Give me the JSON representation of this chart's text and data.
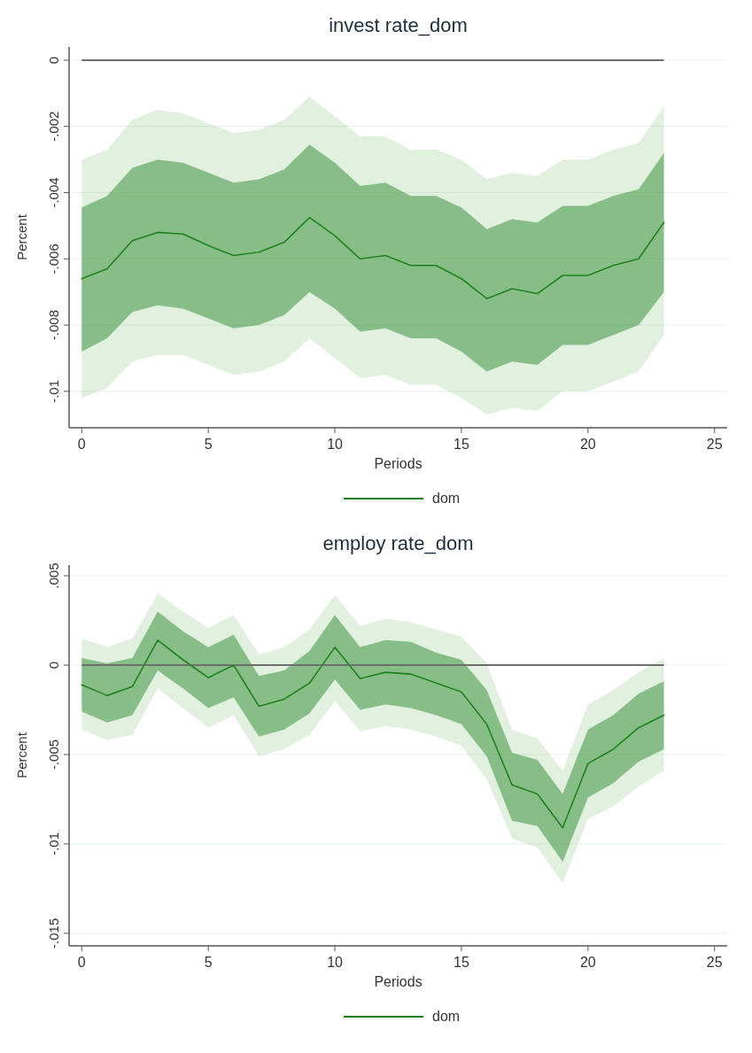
{
  "chart_data": [
    {
      "type": "line",
      "title": "invest rate_dom",
      "xlabel": "Periods",
      "ylabel": "Percent",
      "x": [
        0,
        1,
        2,
        3,
        4,
        5,
        6,
        7,
        8,
        9,
        10,
        11,
        12,
        13,
        14,
        15,
        16,
        17,
        18,
        19,
        20,
        21,
        22,
        23
      ],
      "xlim": [
        -0.5,
        25.5
      ],
      "xticks": [
        0,
        5,
        10,
        15,
        20,
        25
      ],
      "ylim": [
        -0.0111,
        0.0004
      ],
      "yticks": [
        0,
        {
          "value": -0.002,
          "label": "-.002"
        },
        {
          "value": -0.004,
          "label": "-.004"
        },
        {
          "value": -0.006,
          "label": "-.006"
        },
        {
          "value": -0.008,
          "label": "-.008"
        },
        {
          "value": -0.01,
          "label": "-.01"
        }
      ],
      "grid": "y",
      "legend": "bottom",
      "ref_lines": [
        {
          "axis": "y",
          "value": 0,
          "color": "#6e6e6e"
        }
      ],
      "series": [
        {
          "name": "dom",
          "color": "#1a7f1a",
          "values": [
            -0.0066,
            -0.0063,
            -0.00545,
            -0.0052,
            -0.00525,
            -0.0056,
            -0.0059,
            -0.0058,
            -0.0055,
            -0.00475,
            -0.0053,
            -0.006,
            -0.0059,
            -0.0062,
            -0.0062,
            -0.0066,
            -0.0072,
            -0.0069,
            -0.00705,
            -0.0065,
            -0.0065,
            -0.0062,
            -0.006,
            -0.0049
          ],
          "lower": [
            -0.0088,
            -0.0084,
            -0.0076,
            -0.0074,
            -0.0075,
            -0.0078,
            -0.0081,
            -0.008,
            -0.0077,
            -0.007,
            -0.0075,
            -0.0082,
            -0.0081,
            -0.0084,
            -0.0084,
            -0.0088,
            -0.0094,
            -0.0091,
            -0.0092,
            -0.0086,
            -0.0086,
            -0.0083,
            -0.008,
            -0.007
          ],
          "upper": [
            -0.00445,
            -0.0041,
            -0.00325,
            -0.003,
            -0.0031,
            -0.0034,
            -0.0037,
            -0.0036,
            -0.0033,
            -0.00255,
            -0.0031,
            -0.0038,
            -0.0037,
            -0.0041,
            -0.0041,
            -0.00445,
            -0.0051,
            -0.0048,
            -0.0049,
            -0.0044,
            -0.0044,
            -0.0041,
            -0.0039,
            -0.0028
          ]
        },
        {
          "color": "#a8d5a2",
          "values": [
            -0.0066,
            -0.0063,
            -0.00545,
            -0.0052,
            -0.00525,
            -0.0056,
            -0.0059,
            -0.0058,
            -0.0055,
            -0.00475,
            -0.0053,
            -0.006,
            -0.0059,
            -0.0062,
            -0.0062,
            -0.0066,
            -0.0072,
            -0.0069,
            -0.00705,
            -0.0065,
            -0.0065,
            -0.0062,
            -0.006,
            -0.0049
          ],
          "lower": [
            -0.0102,
            -0.0099,
            -0.0091,
            -0.0089,
            -0.0089,
            -0.0092,
            -0.0095,
            -0.0094,
            -0.0091,
            -0.0084,
            -0.009,
            -0.0096,
            -0.0095,
            -0.0098,
            -0.0098,
            -0.0102,
            -0.0107,
            -0.0105,
            -0.0106,
            -0.01,
            -0.01,
            -0.0097,
            -0.0094,
            -0.0083
          ],
          "upper": [
            -0.003,
            -0.0027,
            -0.0018,
            -0.0015,
            -0.0016,
            -0.0019,
            -0.0022,
            -0.0021,
            -0.0018,
            -0.0011,
            -0.0017,
            -0.0023,
            -0.0023,
            -0.0027,
            -0.0027,
            -0.003,
            -0.0036,
            -0.0034,
            -0.0035,
            -0.003,
            -0.003,
            -0.0027,
            -0.0025,
            -0.0014
          ]
        }
      ]
    },
    {
      "type": "line",
      "title": "employ rate_dom",
      "xlabel": "Periods",
      "ylabel": "Percent",
      "x": [
        0,
        1,
        2,
        3,
        4,
        5,
        6,
        7,
        8,
        9,
        10,
        11,
        12,
        13,
        14,
        15,
        16,
        17,
        18,
        19,
        20,
        21,
        22,
        23
      ],
      "xlim": [
        -0.5,
        25.5
      ],
      "xticks": [
        0,
        5,
        10,
        15,
        20,
        25
      ],
      "ylim": [
        -0.0157,
        0.0056
      ],
      "yticks": [
        {
          "value": 0.005,
          "label": ".005"
        },
        0,
        {
          "value": -0.005,
          "label": "-.005"
        },
        {
          "value": -0.01,
          "label": "-.01"
        },
        {
          "value": -0.015,
          "label": "-.015"
        }
      ],
      "grid": "y",
      "legend": "bottom",
      "ref_lines": [
        {
          "axis": "y",
          "value": 0,
          "color": "#6e6e6e"
        }
      ],
      "series": [
        {
          "name": "dom",
          "color": "#1a7f1a",
          "values": [
            -0.0011,
            -0.0017,
            -0.0012,
            0.0014,
            0.0003,
            -0.0007,
            0,
            -0.0023,
            -0.0019,
            -0.001,
            0.001,
            -0.00075,
            -0.0004,
            -0.0005,
            -0.001,
            -0.0015,
            -0.0033,
            -0.0067,
            -0.0072,
            -0.0091,
            -0.0055,
            -0.0047,
            -0.0035,
            -0.0028
          ],
          "lower": [
            -0.0026,
            -0.0032,
            -0.0028,
            -0.0003,
            -0.0013,
            -0.0024,
            -0.0018,
            -0.004,
            -0.0036,
            -0.0027,
            -0.0008,
            -0.0025,
            -0.0022,
            -0.0024,
            -0.0028,
            -0.0033,
            -0.0051,
            -0.0087,
            -0.009,
            -0.011,
            -0.0074,
            -0.0066,
            -0.0054,
            -0.0047
          ],
          "upper": [
            0.0004,
            0.0001,
            0.0004,
            0.003,
            0.0019,
            0.001,
            0.0017,
            -0.0006,
            -0.0003,
            0.0008,
            0.0028,
            0.001,
            0.0014,
            0.0013,
            0.0007,
            0.0003,
            -0.0014,
            -0.0049,
            -0.0053,
            -0.0072,
            -0.0036,
            -0.0028,
            -0.0016,
            -0.0009
          ]
        },
        {
          "color": "#a8d5a2",
          "values": [
            -0.0011,
            -0.0017,
            -0.0012,
            0.0014,
            0.0003,
            -0.0007,
            0,
            -0.0023,
            -0.0019,
            -0.001,
            0.001,
            -0.00075,
            -0.0004,
            -0.0005,
            -0.001,
            -0.0015,
            -0.0033,
            -0.0067,
            -0.0072,
            -0.0091,
            -0.0055,
            -0.0047,
            -0.0035,
            -0.0028
          ],
          "lower": [
            -0.0036,
            -0.0042,
            -0.0039,
            -0.0013,
            -0.0024,
            -0.0035,
            -0.0028,
            -0.0051,
            -0.0047,
            -0.0039,
            -0.002,
            -0.0037,
            -0.0034,
            -0.0036,
            -0.004,
            -0.0045,
            -0.0064,
            -0.0097,
            -0.0102,
            -0.0122,
            -0.0086,
            -0.0079,
            -0.0068,
            -0.0059
          ],
          "upper": [
            0.0015,
            0.001,
            0.0015,
            0.004,
            0.003,
            0.0021,
            0.0028,
            0.0006,
            0.001,
            0.002,
            0.0039,
            0.0022,
            0.0026,
            0.0024,
            0.002,
            0.0016,
            0.0001,
            -0.0036,
            -0.0041,
            -0.0059,
            -0.0022,
            -0.0014,
            -0.0004,
            0.0004
          ]
        }
      ]
    }
  ]
}
